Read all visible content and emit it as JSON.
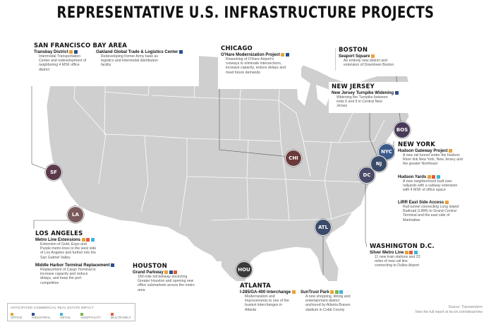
{
  "title": "REPRESENTATIVE U.S. INFRASTRUCTURE PROJECTS",
  "colors": {
    "office": "#e8a33a",
    "industrial": "#2a4f8f",
    "retail": "#3fb4dd",
    "hospitality": "#7ab648",
    "multifamily": "#e25b3b"
  },
  "regions": {
    "sf": {
      "title": "SAN FRANCISCO BAY AREA",
      "pin": "SF",
      "projects": [
        {
          "name": "Transbay District",
          "desc": "Intermodal Transportation Center and redevelopment of neighboring 4 MSF office district",
          "impact": [
            "office",
            "industrial"
          ]
        },
        {
          "name": "Oakland Global Trade & Logistics Center",
          "desc": "Redeveloping former Army base as logistics and intermodal distribution facility",
          "impact": [
            "industrial"
          ]
        }
      ]
    },
    "la": {
      "title": "LOS ANGELES",
      "pin": "LA",
      "projects": [
        {
          "name": "Metro Line Extensions",
          "desc": "Extension of Gold, Expo and Purple metro lines to the west side of Los Angeles and further into the San Gabriel Valley",
          "impact": [
            "office",
            "multifamily",
            "retail"
          ]
        },
        {
          "name": "Middle Harbor Terminal Replacement",
          "desc": "Replacement of Cargo Terminal to increase capacity and reduce delays, and keep the port competitive",
          "impact": [
            "industrial"
          ]
        }
      ]
    },
    "chicago": {
      "title": "CHICAGO",
      "pin": "CHI",
      "projects": [
        {
          "name": "O'Hare Modernization Project",
          "desc": "Reworking of O'Hare Airport's runways to eliminate intersections, increase capacity, reduce delays and meet future demands",
          "impact": [
            "office",
            "industrial"
          ]
        }
      ]
    },
    "boston": {
      "title": "BOSTON",
      "pin": "BOS",
      "projects": [
        {
          "name": "Seaport Square",
          "desc": "An entirely new district and extension of Downtown Boston",
          "impact": [
            "office"
          ]
        }
      ]
    },
    "nj": {
      "title": "NEW JERSEY",
      "pin": "NJ",
      "projects": [
        {
          "name": "New Jersey Turnpike Widening",
          "desc": "Widening the Turnpike between exits 6 and 9 in Central New Jersey",
          "impact": [
            "industrial"
          ]
        }
      ]
    },
    "ny": {
      "title": "NEW YORK",
      "pin": "NYC",
      "projects": [
        {
          "name": "Hudson Gateway Project",
          "desc": "A new rail tunnel under the Hudson River link New York, New Jersey and the greater Northeast",
          "impact": [
            "office"
          ]
        },
        {
          "name": "Hudson Yards",
          "desc": "A new neighborhood built over railyards with a subway extension with 4 MSF of office space",
          "impact": [
            "office",
            "multifamily",
            "retail"
          ]
        },
        {
          "name": "LIRR East Side Access",
          "desc": "Rail tunnel connecting Long Island Railroad (LIRR) to Grand Central Terminal and the east side of Manhattan",
          "impact": [
            "office"
          ]
        }
      ]
    },
    "dc": {
      "title": "WASHINGTON D.C.",
      "pin": "DC",
      "projects": [
        {
          "name": "Silver Metro Line",
          "desc": "11 new train stations and 23 miles of new rail line connecting to Dulles Airport",
          "impact": [
            "office",
            "multifamily",
            "retail"
          ]
        }
      ]
    },
    "houston": {
      "title": "HOUSTON",
      "pin": "HOU",
      "projects": [
        {
          "name": "Grand Parkway",
          "desc": "180-mile toll beltway encircling Greater Houston and opening new office submarkets across the metro area",
          "impact": [
            "office",
            "industrial",
            "multifamily"
          ]
        }
      ]
    },
    "atlanta": {
      "title": "ATLANTA",
      "pin": "ATL",
      "projects": [
        {
          "name": "I-285/GA-400 Interchange",
          "desc": "Modernization and improvements to one of the busiest interchanges in Atlanta",
          "impact": [
            "office"
          ]
        },
        {
          "name": "SunTrust Park",
          "desc": "A new shopping, dining and entertainment district anchored by Atlanta Braves stadium in Cobb County",
          "impact": [
            "office",
            "hospitality",
            "retail"
          ]
        }
      ]
    }
  },
  "legend": {
    "title": "ANTICIPATED COMMERCIAL REAL ESTATE IMPACT",
    "items": [
      {
        "label": "OFFICE",
        "color": "#e8a33a"
      },
      {
        "label": "INDUSTRIAL",
        "color": "#2a4f8f"
      },
      {
        "label": "RETAIL",
        "color": "#3fb4dd"
      },
      {
        "label": "HOSPITALITY",
        "color": "#7ab648"
      },
      {
        "label": "MULTIFAMILY",
        "color": "#e25b3b"
      }
    ]
  },
  "source": {
    "line1": "Source: Transwestern",
    "line2": "View the full report at tw.cm.com/ideas/new"
  }
}
